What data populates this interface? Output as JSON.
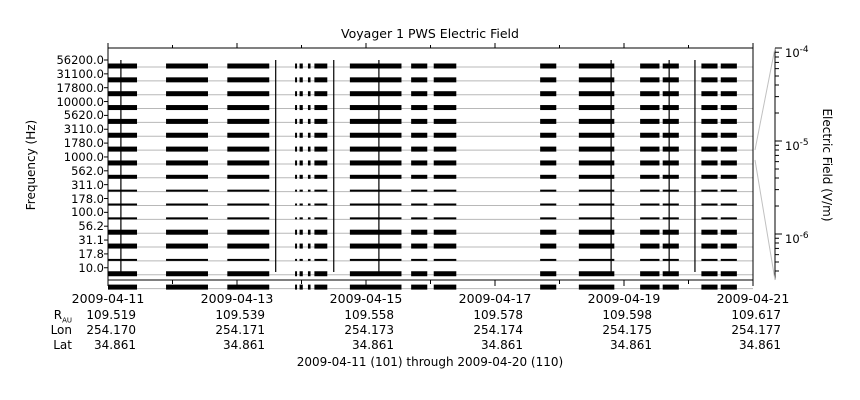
{
  "chart_data": {
    "type": "heatmap",
    "title": "Voyager 1 PWS Electric Field",
    "ylabel": "Frequency (Hz)",
    "colorbar_label": "Electric Field (V/m)",
    "colorbar_ticks": [
      {
        "base": "10",
        "exp": "-4",
        "value": 0.0001
      },
      {
        "base": "10",
        "exp": "-5",
        "value": 1e-05
      },
      {
        "base": "10",
        "exp": "-6",
        "value": 1e-06
      }
    ],
    "frequency_channels": [
      "56200.0",
      "31100.0",
      "17800.0",
      "10000.0",
      "5620.0",
      "3110.0",
      "1780.0",
      "1000.0",
      "562.0",
      "311.0",
      "178.0",
      "100.0",
      "56.2",
      "31.1",
      "17.8",
      "10.0"
    ],
    "x_dates": [
      "2009-04-11",
      "2009-04-13",
      "2009-04-15",
      "2009-04-17",
      "2009-04-19",
      "2009-04-21"
    ],
    "xlim_days": [
      0,
      10
    ],
    "data_segments_days": [
      [
        0.0,
        0.45
      ],
      [
        0.9,
        1.55
      ],
      [
        1.85,
        2.5
      ],
      [
        2.9,
        2.93
      ],
      [
        2.97,
        3.02
      ],
      [
        3.1,
        3.14
      ],
      [
        3.2,
        3.4
      ],
      [
        3.75,
        4.55
      ],
      [
        4.7,
        4.95
      ],
      [
        5.05,
        5.4
      ],
      [
        6.7,
        6.95
      ],
      [
        7.3,
        7.85
      ],
      [
        8.25,
        8.55
      ],
      [
        8.6,
        8.85
      ],
      [
        9.2,
        9.45
      ],
      [
        9.5,
        9.75
      ]
    ],
    "spike_days": [
      0.2,
      2.6,
      3.5,
      4.2,
      7.8,
      8.7,
      9.1
    ]
  },
  "ephemeris": {
    "rows": [
      {
        "label": "R",
        "label_sub": "AU",
        "values": [
          "109.519",
          "109.539",
          "109.558",
          "109.578",
          "109.598",
          "109.617"
        ]
      },
      {
        "label": "Lon",
        "values": [
          "254.170",
          "254.171",
          "254.173",
          "254.174",
          "254.175",
          "254.177"
        ]
      },
      {
        "label": "Lat",
        "values": [
          "34.861",
          "34.861",
          "34.861",
          "34.861",
          "34.861",
          "34.861"
        ]
      }
    ]
  },
  "footer": "2009-04-11 (101) through 2009-04-20 (110)"
}
